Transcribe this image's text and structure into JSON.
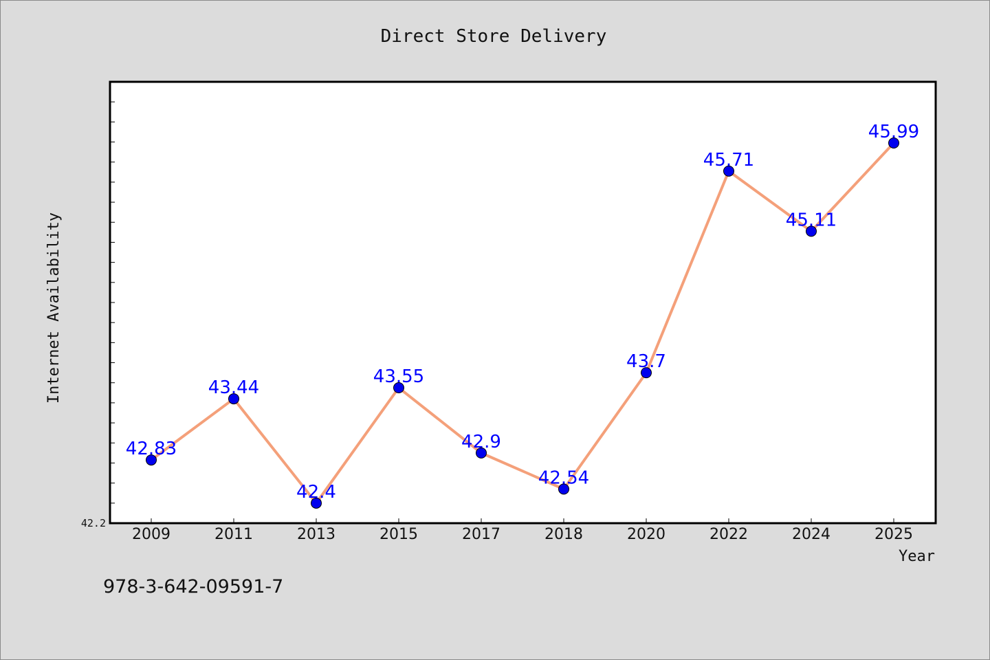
{
  "chart_data": {
    "type": "line",
    "title": "Direct Store Delivery",
    "xlabel": "Year",
    "ylabel": "Internet Availability",
    "categories": [
      "2009",
      "2011",
      "2013",
      "2015",
      "2017",
      "2018",
      "2020",
      "2022",
      "2024",
      "2025"
    ],
    "series": [
      {
        "values": [
          42.83,
          43.44,
          42.4,
          43.55,
          42.9,
          42.54,
          43.7,
          45.71,
          45.11,
          45.99
        ],
        "data_labels": [
          "42.83",
          "43.44",
          "42.4",
          "43.55",
          "42.9",
          "42.54",
          "43.7",
          "45.71",
          "45.11",
          "45.99"
        ]
      }
    ],
    "y_tick_labels": [
      "42.2"
    ],
    "ylim": [
      42.2,
      46.6
    ],
    "grid": false,
    "legend": "none",
    "colors": {
      "line": "#f4a07a",
      "marker": "#0000ee",
      "data_label": "#0000ff",
      "plot_background": "#ffffff",
      "figure_background": "#dcdcdc"
    }
  },
  "annotation": "978-3-642-09591-7"
}
